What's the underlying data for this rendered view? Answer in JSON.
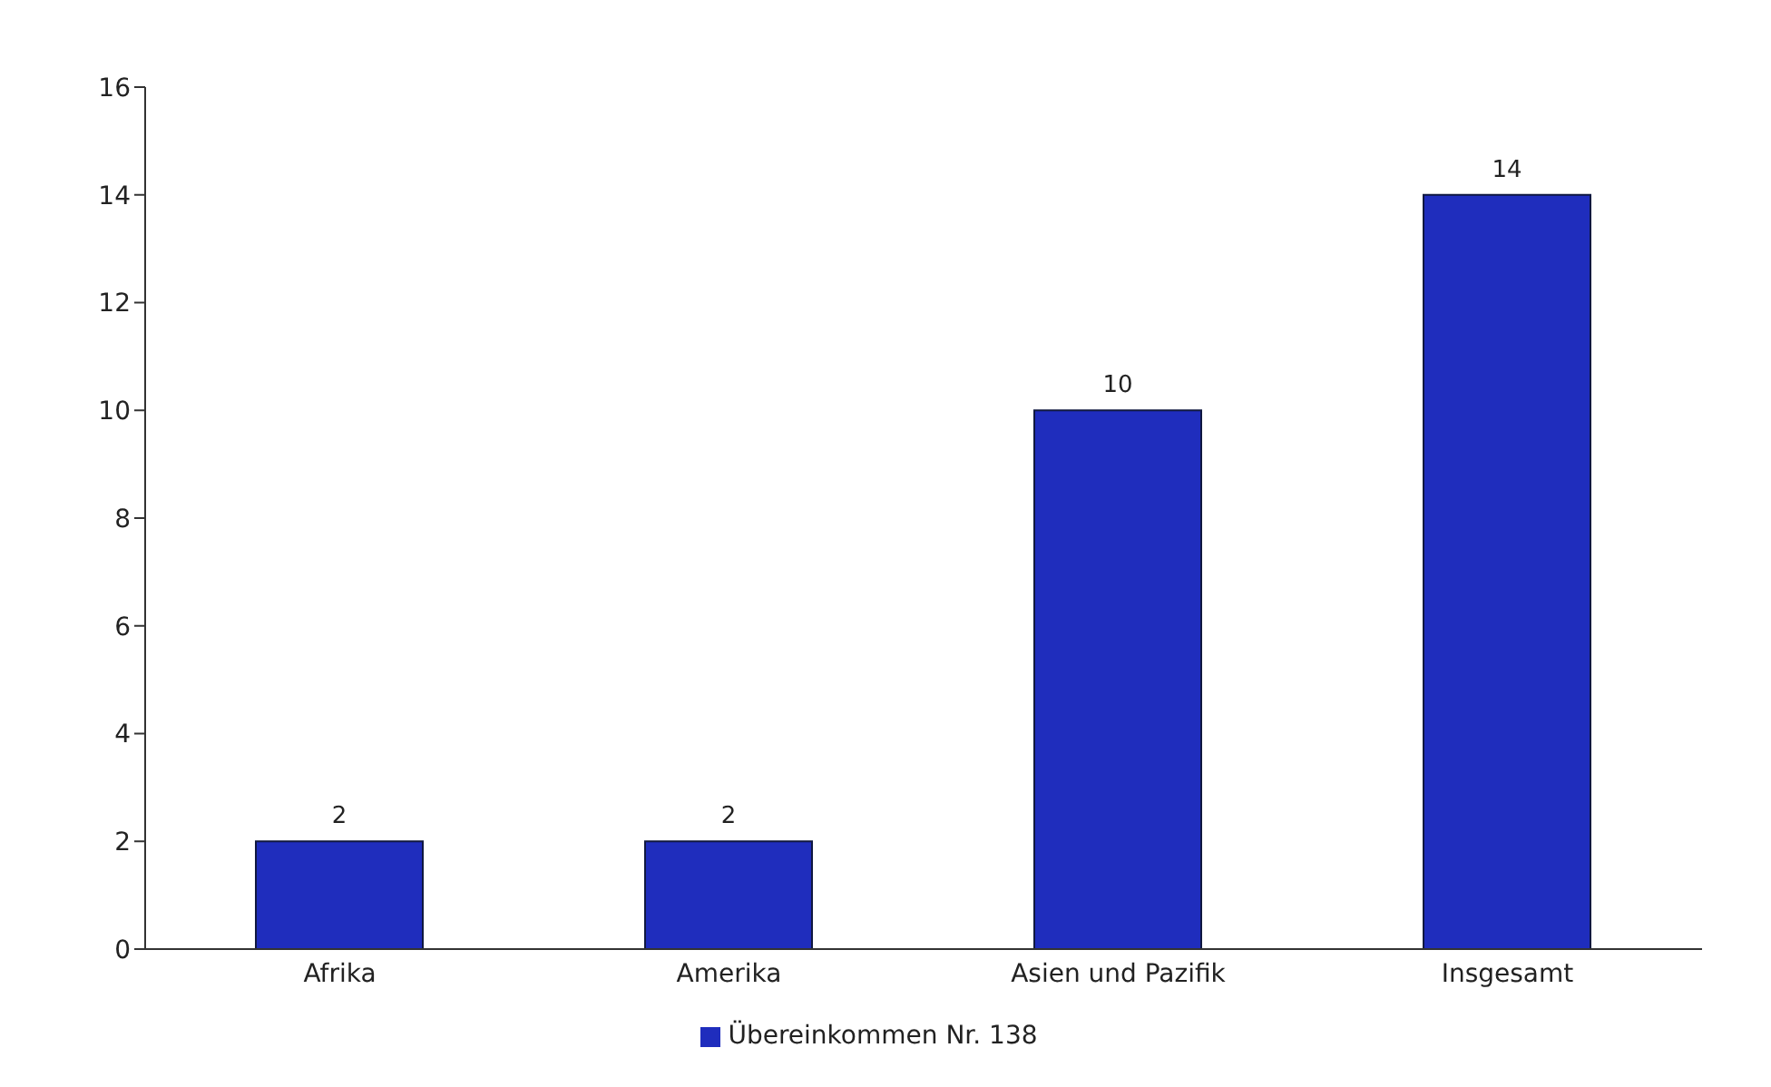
{
  "chart_data": {
    "type": "bar",
    "categories": [
      "Afrika",
      "Amerika",
      "Asien und Pazifik",
      "Insgesamt"
    ],
    "series": [
      {
        "name": "Übereinkommen Nr. 138",
        "color": "#1f2dbd",
        "values": [
          2,
          2,
          10,
          14
        ]
      }
    ],
    "ylim": [
      0,
      16
    ],
    "yticks": [
      0,
      2,
      4,
      6,
      8,
      10,
      12,
      14,
      16
    ],
    "grid": false,
    "legend": "bottom",
    "data_labels": true
  }
}
